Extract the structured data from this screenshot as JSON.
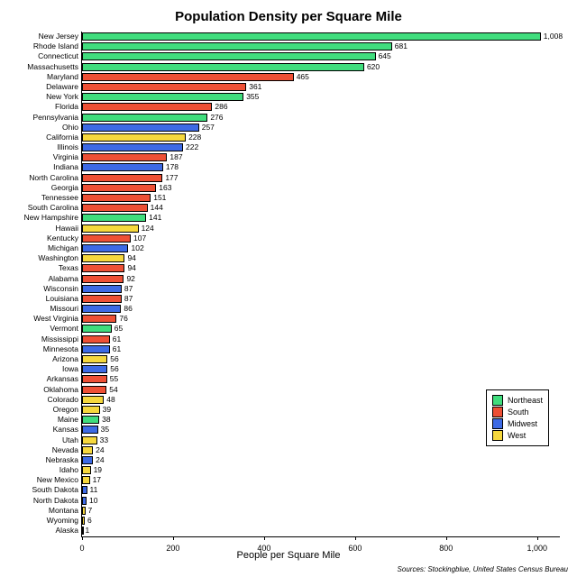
{
  "chart": {
    "title": "Population Density per Square Mile",
    "xlabel": "People per Square Mile",
    "source": "Sources: Stockingblue, United States Census Bureau",
    "xlim": [
      0,
      1050
    ],
    "xticks": [
      0,
      200,
      400,
      600,
      800,
      1000
    ],
    "xtick_labels": [
      "0",
      "200",
      "400",
      "600",
      "800",
      "1,000"
    ],
    "title_fontsize": 15,
    "label_fontsize": 11,
    "tick_fontsize": 9,
    "bar_label_fontsize": 8.5,
    "background_color": "#ffffff",
    "border_color": "#000000",
    "colors": {
      "Northeast": "#40dd7d",
      "South": "#ee5035",
      "Midwest": "#3d6ae5",
      "West": "#f6d83d"
    },
    "legend": [
      {
        "label": "Northeast",
        "color": "#40dd7d"
      },
      {
        "label": "South",
        "color": "#ee5035"
      },
      {
        "label": "Midwest",
        "color": "#3d6ae5"
      },
      {
        "label": "West",
        "color": "#f6d83d"
      }
    ],
    "data": [
      {
        "state": "New Jersey",
        "value": 1008,
        "value_label": "1,008",
        "region": "Northeast"
      },
      {
        "state": "Rhode Island",
        "value": 681,
        "value_label": "681",
        "region": "Northeast"
      },
      {
        "state": "Connecticut",
        "value": 645,
        "value_label": "645",
        "region": "Northeast"
      },
      {
        "state": "Massachusetts",
        "value": 620,
        "value_label": "620",
        "region": "Northeast"
      },
      {
        "state": "Maryland",
        "value": 465,
        "value_label": "465",
        "region": "South"
      },
      {
        "state": "Delaware",
        "value": 361,
        "value_label": "361",
        "region": "South"
      },
      {
        "state": "New York",
        "value": 355,
        "value_label": "355",
        "region": "Northeast"
      },
      {
        "state": "Florida",
        "value": 286,
        "value_label": "286",
        "region": "South"
      },
      {
        "state": "Pennsylvania",
        "value": 276,
        "value_label": "276",
        "region": "Northeast"
      },
      {
        "state": "Ohio",
        "value": 257,
        "value_label": "257",
        "region": "Midwest"
      },
      {
        "state": "California",
        "value": 228,
        "value_label": "228",
        "region": "West"
      },
      {
        "state": "Illinois",
        "value": 222,
        "value_label": "222",
        "region": "Midwest"
      },
      {
        "state": "Virginia",
        "value": 187,
        "value_label": "187",
        "region": "South"
      },
      {
        "state": "Indiana",
        "value": 178,
        "value_label": "178",
        "region": "Midwest"
      },
      {
        "state": "North Carolina",
        "value": 177,
        "value_label": "177",
        "region": "South"
      },
      {
        "state": "Georgia",
        "value": 163,
        "value_label": "163",
        "region": "South"
      },
      {
        "state": "Tennessee",
        "value": 151,
        "value_label": "151",
        "region": "South"
      },
      {
        "state": "South Carolina",
        "value": 144,
        "value_label": "144",
        "region": "South"
      },
      {
        "state": "New Hampshire",
        "value": 141,
        "value_label": "141",
        "region": "Northeast"
      },
      {
        "state": "Hawaii",
        "value": 124,
        "value_label": "124",
        "region": "West"
      },
      {
        "state": "Kentucky",
        "value": 107,
        "value_label": "107",
        "region": "South"
      },
      {
        "state": "Michigan",
        "value": 102,
        "value_label": "102",
        "region": "Midwest"
      },
      {
        "state": "Washington",
        "value": 94,
        "value_label": "94",
        "region": "West"
      },
      {
        "state": "Texas",
        "value": 94,
        "value_label": "94",
        "region": "South"
      },
      {
        "state": "Alabama",
        "value": 92,
        "value_label": "92",
        "region": "South"
      },
      {
        "state": "Wisconsin",
        "value": 87,
        "value_label": "87",
        "region": "Midwest"
      },
      {
        "state": "Louisiana",
        "value": 87,
        "value_label": "87",
        "region": "South"
      },
      {
        "state": "Missouri",
        "value": 86,
        "value_label": "86",
        "region": "Midwest"
      },
      {
        "state": "West Virginia",
        "value": 76,
        "value_label": "76",
        "region": "South"
      },
      {
        "state": "Vermont",
        "value": 65,
        "value_label": "65",
        "region": "Northeast"
      },
      {
        "state": "Mississippi",
        "value": 61,
        "value_label": "61",
        "region": "South"
      },
      {
        "state": "Minnesota",
        "value": 61,
        "value_label": "61",
        "region": "Midwest"
      },
      {
        "state": "Arizona",
        "value": 56,
        "value_label": "56",
        "region": "West"
      },
      {
        "state": "Iowa",
        "value": 56,
        "value_label": "56",
        "region": "Midwest"
      },
      {
        "state": "Arkansas",
        "value": 55,
        "value_label": "55",
        "region": "South"
      },
      {
        "state": "Oklahoma",
        "value": 54,
        "value_label": "54",
        "region": "South"
      },
      {
        "state": "Colorado",
        "value": 48,
        "value_label": "48",
        "region": "West"
      },
      {
        "state": "Oregon",
        "value": 39,
        "value_label": "39",
        "region": "West"
      },
      {
        "state": "Maine",
        "value": 38,
        "value_label": "38",
        "region": "Northeast"
      },
      {
        "state": "Kansas",
        "value": 35,
        "value_label": "35",
        "region": "Midwest"
      },
      {
        "state": "Utah",
        "value": 33,
        "value_label": "33",
        "region": "West"
      },
      {
        "state": "Nevada",
        "value": 24,
        "value_label": "24",
        "region": "West"
      },
      {
        "state": "Nebraska",
        "value": 24,
        "value_label": "24",
        "region": "Midwest"
      },
      {
        "state": "Idaho",
        "value": 19,
        "value_label": "19",
        "region": "West"
      },
      {
        "state": "New Mexico",
        "value": 17,
        "value_label": "17",
        "region": "West"
      },
      {
        "state": "South Dakota",
        "value": 11,
        "value_label": "11",
        "region": "Midwest"
      },
      {
        "state": "North Dakota",
        "value": 10,
        "value_label": "10",
        "region": "Midwest"
      },
      {
        "state": "Montana",
        "value": 7,
        "value_label": "7",
        "region": "West"
      },
      {
        "state": "Wyoming",
        "value": 6,
        "value_label": "6",
        "region": "West"
      },
      {
        "state": "Alaska",
        "value": 1,
        "value_label": "1",
        "region": "West"
      }
    ]
  }
}
